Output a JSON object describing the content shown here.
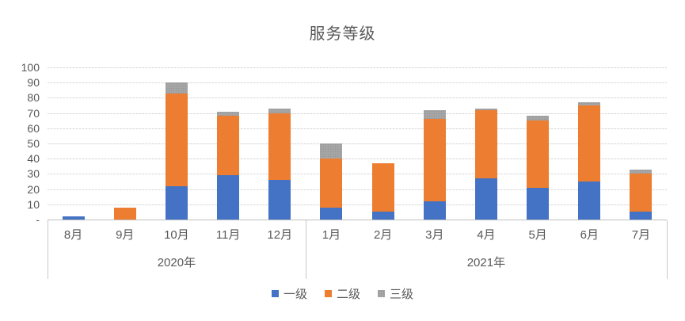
{
  "title": "服务等级",
  "chart_data": {
    "type": "bar",
    "stacked": true,
    "title": "服务等级",
    "categories": [
      "8月",
      "9月",
      "10月",
      "11月",
      "12月",
      "1月",
      "2月",
      "3月",
      "4月",
      "5月",
      "6月",
      "7月"
    ],
    "year_groups": [
      {
        "label": "2020年",
        "span": 5
      },
      {
        "label": "2021年",
        "span": 7
      }
    ],
    "series": [
      {
        "name": "一级",
        "color": "#4472C4",
        "textured": false,
        "values": [
          2,
          0,
          22,
          29,
          26,
          8,
          5,
          12,
          27,
          21,
          25,
          5
        ]
      },
      {
        "name": "二级",
        "color": "#ED7D31",
        "textured": false,
        "values": [
          0,
          8,
          61,
          39,
          44,
          32,
          32,
          54,
          45,
          44,
          50,
          25
        ]
      },
      {
        "name": "三级",
        "color": "#A5A5A5",
        "textured": true,
        "values": [
          0,
          0,
          7,
          3,
          3,
          10,
          0,
          6,
          1,
          3,
          2,
          3
        ]
      }
    ],
    "ylim": [
      0,
      100
    ],
    "ytick_interval": 10,
    "ytick_labels": [
      "-",
      "10",
      "20",
      "30",
      "40",
      "50",
      "60",
      "70",
      "80",
      "90",
      "100"
    ],
    "grid": true,
    "legend_position": "bottom",
    "gridline_color": "#D9D9D9",
    "axis_line_color": "#BFBFBF",
    "text_color": "#595959"
  }
}
